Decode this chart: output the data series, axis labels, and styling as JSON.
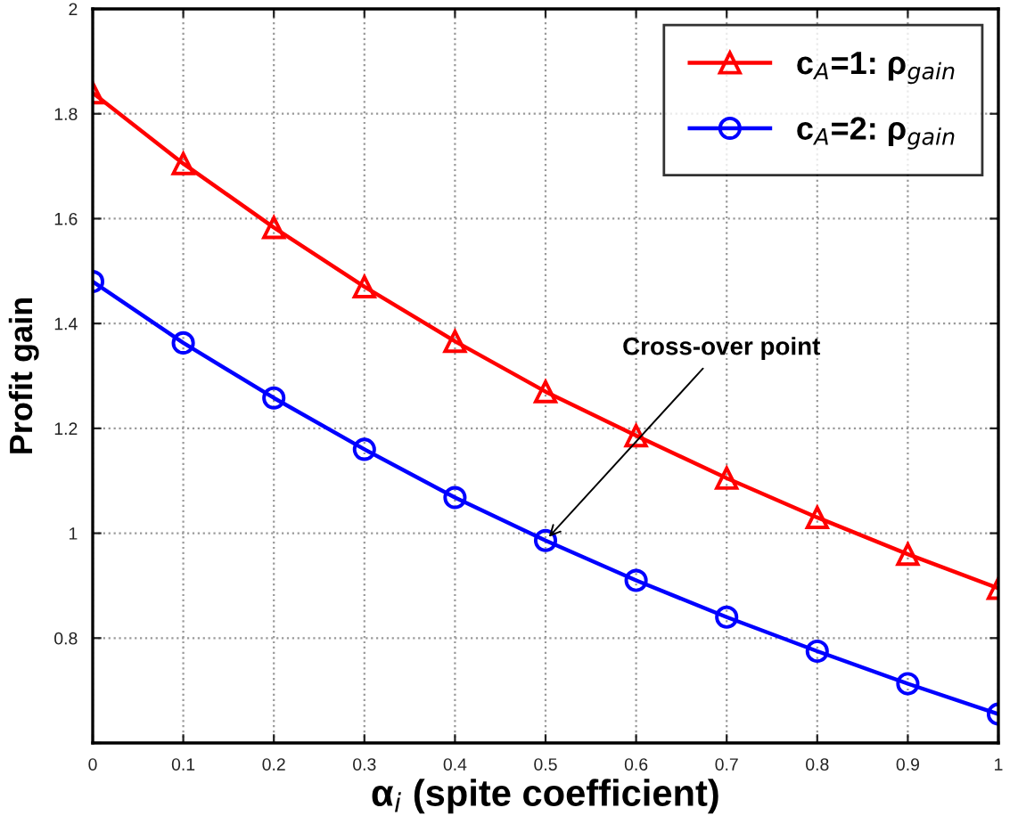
{
  "chart_data": {
    "type": "line",
    "xlabel": "α$_{i}$ (spite coefficient)",
    "ylabel": "Profit gain",
    "x": [
      0,
      0.1,
      0.2,
      0.3,
      0.4,
      0.5,
      0.6,
      0.7,
      0.8,
      0.9,
      1
    ],
    "series": [
      {
        "name": "c$_{A}$=1: ρ$_{gain}$",
        "color": "#ff0000",
        "marker": "triangle",
        "values": [
          1.84,
          1.705,
          1.583,
          1.47,
          1.366,
          1.27,
          1.186,
          1.105,
          1.03,
          0.96,
          0.895
        ]
      },
      {
        "name": "c$_{A}$=2: ρ$_{gain}$",
        "color": "#0000ff",
        "marker": "circle",
        "values": [
          1.48,
          1.363,
          1.258,
          1.16,
          1.068,
          0.986,
          0.91,
          0.84,
          0.775,
          0.713,
          0.655
        ]
      }
    ],
    "annotations": [
      {
        "text": "Cross-over point",
        "x": 0.5,
        "y": 0.986
      }
    ],
    "xlim": [
      0,
      1
    ],
    "xticks": [
      0,
      0.1,
      0.2,
      0.3,
      0.4,
      0.5,
      0.6,
      0.7,
      0.8,
      0.9,
      1
    ],
    "ylim": [
      0.6,
      2
    ],
    "yticks": [
      {
        "value": 0.6,
        "label": null
      },
      0.8,
      1,
      1.2,
      1.4,
      1.6,
      1.8,
      2
    ],
    "grid": true,
    "legend": "top right",
    "line_style": "solid"
  }
}
